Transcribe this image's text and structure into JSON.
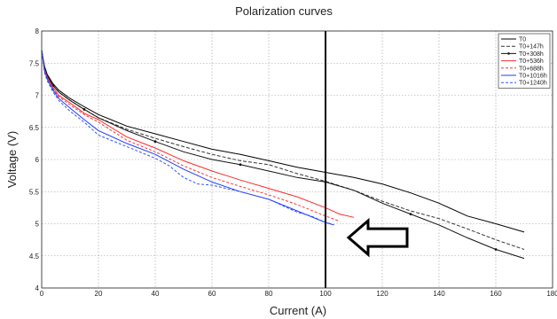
{
  "chart_data": {
    "type": "line",
    "title": "Polarization curves",
    "xlabel": "Current (A)",
    "ylabel": "Voltage (V)",
    "xlim": [
      0,
      180
    ],
    "ylim": [
      4,
      8
    ],
    "xticks": [
      0,
      20,
      40,
      60,
      80,
      100,
      120,
      140,
      160,
      180
    ],
    "yticks": [
      4,
      4.5,
      5,
      5.5,
      6,
      6.5,
      7,
      7.5,
      8
    ],
    "grid": true,
    "grid_style": "dotted",
    "legend_position": "top-right",
    "vertical_marker_x": 100,
    "arrow_annotation": {
      "direction": "left",
      "pointing_to_x": 100,
      "at_y": 4.95
    },
    "series": [
      {
        "name": "T0",
        "color": "#000000",
        "dash": "solid",
        "marker": "none",
        "x": [
          0,
          1,
          2,
          4,
          6,
          10,
          15,
          20,
          30,
          40,
          50,
          60,
          70,
          80,
          90,
          100,
          110,
          120,
          130,
          140,
          150,
          160,
          170
        ],
        "y": [
          7.7,
          7.45,
          7.32,
          7.18,
          7.08,
          6.95,
          6.82,
          6.7,
          6.52,
          6.4,
          6.28,
          6.16,
          6.08,
          5.98,
          5.88,
          5.8,
          5.72,
          5.62,
          5.48,
          5.32,
          5.12,
          5.0,
          4.87
        ]
      },
      {
        "name": "T0+147h",
        "color": "#333333",
        "dash": "4,2",
        "marker": "none",
        "x": [
          0,
          1,
          2,
          4,
          6,
          10,
          15,
          20,
          30,
          40,
          50,
          60,
          70,
          80,
          90,
          100,
          110,
          120,
          130,
          140,
          150,
          160,
          170
        ],
        "y": [
          7.7,
          7.42,
          7.3,
          7.15,
          7.05,
          6.92,
          6.78,
          6.65,
          6.47,
          6.33,
          6.2,
          6.08,
          5.98,
          5.92,
          5.78,
          5.66,
          5.52,
          5.35,
          5.2,
          5.08,
          4.92,
          4.75,
          4.6
        ]
      },
      {
        "name": "T0+308h",
        "color": "#111111",
        "dash": "solid",
        "marker": "dot",
        "x": [
          0,
          1,
          2,
          4,
          6,
          10,
          15,
          20,
          30,
          40,
          50,
          60,
          70,
          80,
          90,
          100,
          110,
          120,
          130,
          140,
          150,
          160,
          170
        ],
        "y": [
          7.7,
          7.42,
          7.3,
          7.15,
          7.05,
          6.92,
          6.78,
          6.65,
          6.45,
          6.28,
          6.12,
          6.0,
          5.92,
          5.82,
          5.72,
          5.65,
          5.52,
          5.32,
          5.15,
          4.98,
          4.78,
          4.6,
          4.46
        ]
      },
      {
        "name": "T0+536h",
        "color": "#ff2a2a",
        "dash": "solid",
        "marker": "none",
        "x": [
          0,
          1,
          2,
          4,
          6,
          10,
          15,
          20,
          30,
          40,
          50,
          60,
          70,
          80,
          90,
          100,
          105,
          110
        ],
        "y": [
          7.7,
          7.4,
          7.28,
          7.12,
          7.0,
          6.88,
          6.72,
          6.62,
          6.35,
          6.18,
          5.98,
          5.82,
          5.68,
          5.55,
          5.42,
          5.25,
          5.15,
          5.1
        ]
      },
      {
        "name": "T0+688h",
        "color": "#ff3333",
        "dash": "3,2",
        "marker": "none",
        "x": [
          0,
          1,
          2,
          4,
          6,
          10,
          15,
          20,
          30,
          40,
          50,
          60,
          70,
          80,
          90,
          100,
          105
        ],
        "y": [
          7.7,
          7.38,
          7.26,
          7.1,
          6.98,
          6.85,
          6.7,
          6.58,
          6.3,
          6.12,
          5.9,
          5.72,
          5.58,
          5.45,
          5.3,
          5.12,
          5.04
        ]
      },
      {
        "name": "T0+1016h",
        "color": "#1f3cff",
        "dash": "solid",
        "marker": "none",
        "x": [
          0,
          1,
          2,
          4,
          6,
          10,
          15,
          20,
          30,
          40,
          50,
          60,
          70,
          80,
          90,
          100,
          103
        ],
        "y": [
          7.7,
          7.38,
          7.25,
          7.08,
          6.95,
          6.8,
          6.62,
          6.45,
          6.25,
          6.08,
          5.85,
          5.65,
          5.5,
          5.38,
          5.2,
          5.02,
          4.98
        ]
      },
      {
        "name": "T0+1240h",
        "color": "#3355ff",
        "dash": "3,2",
        "marker": "none",
        "x": [
          0,
          1,
          2,
          4,
          6,
          10,
          15,
          20,
          30,
          40,
          45,
          50,
          55,
          60,
          70,
          80,
          90,
          95,
          100,
          102
        ],
        "y": [
          7.7,
          7.35,
          7.22,
          7.05,
          6.92,
          6.75,
          6.58,
          6.38,
          6.2,
          6.02,
          5.9,
          5.72,
          5.62,
          5.6,
          5.5,
          5.38,
          5.18,
          5.12,
          5.02,
          5.0
        ]
      }
    ]
  }
}
